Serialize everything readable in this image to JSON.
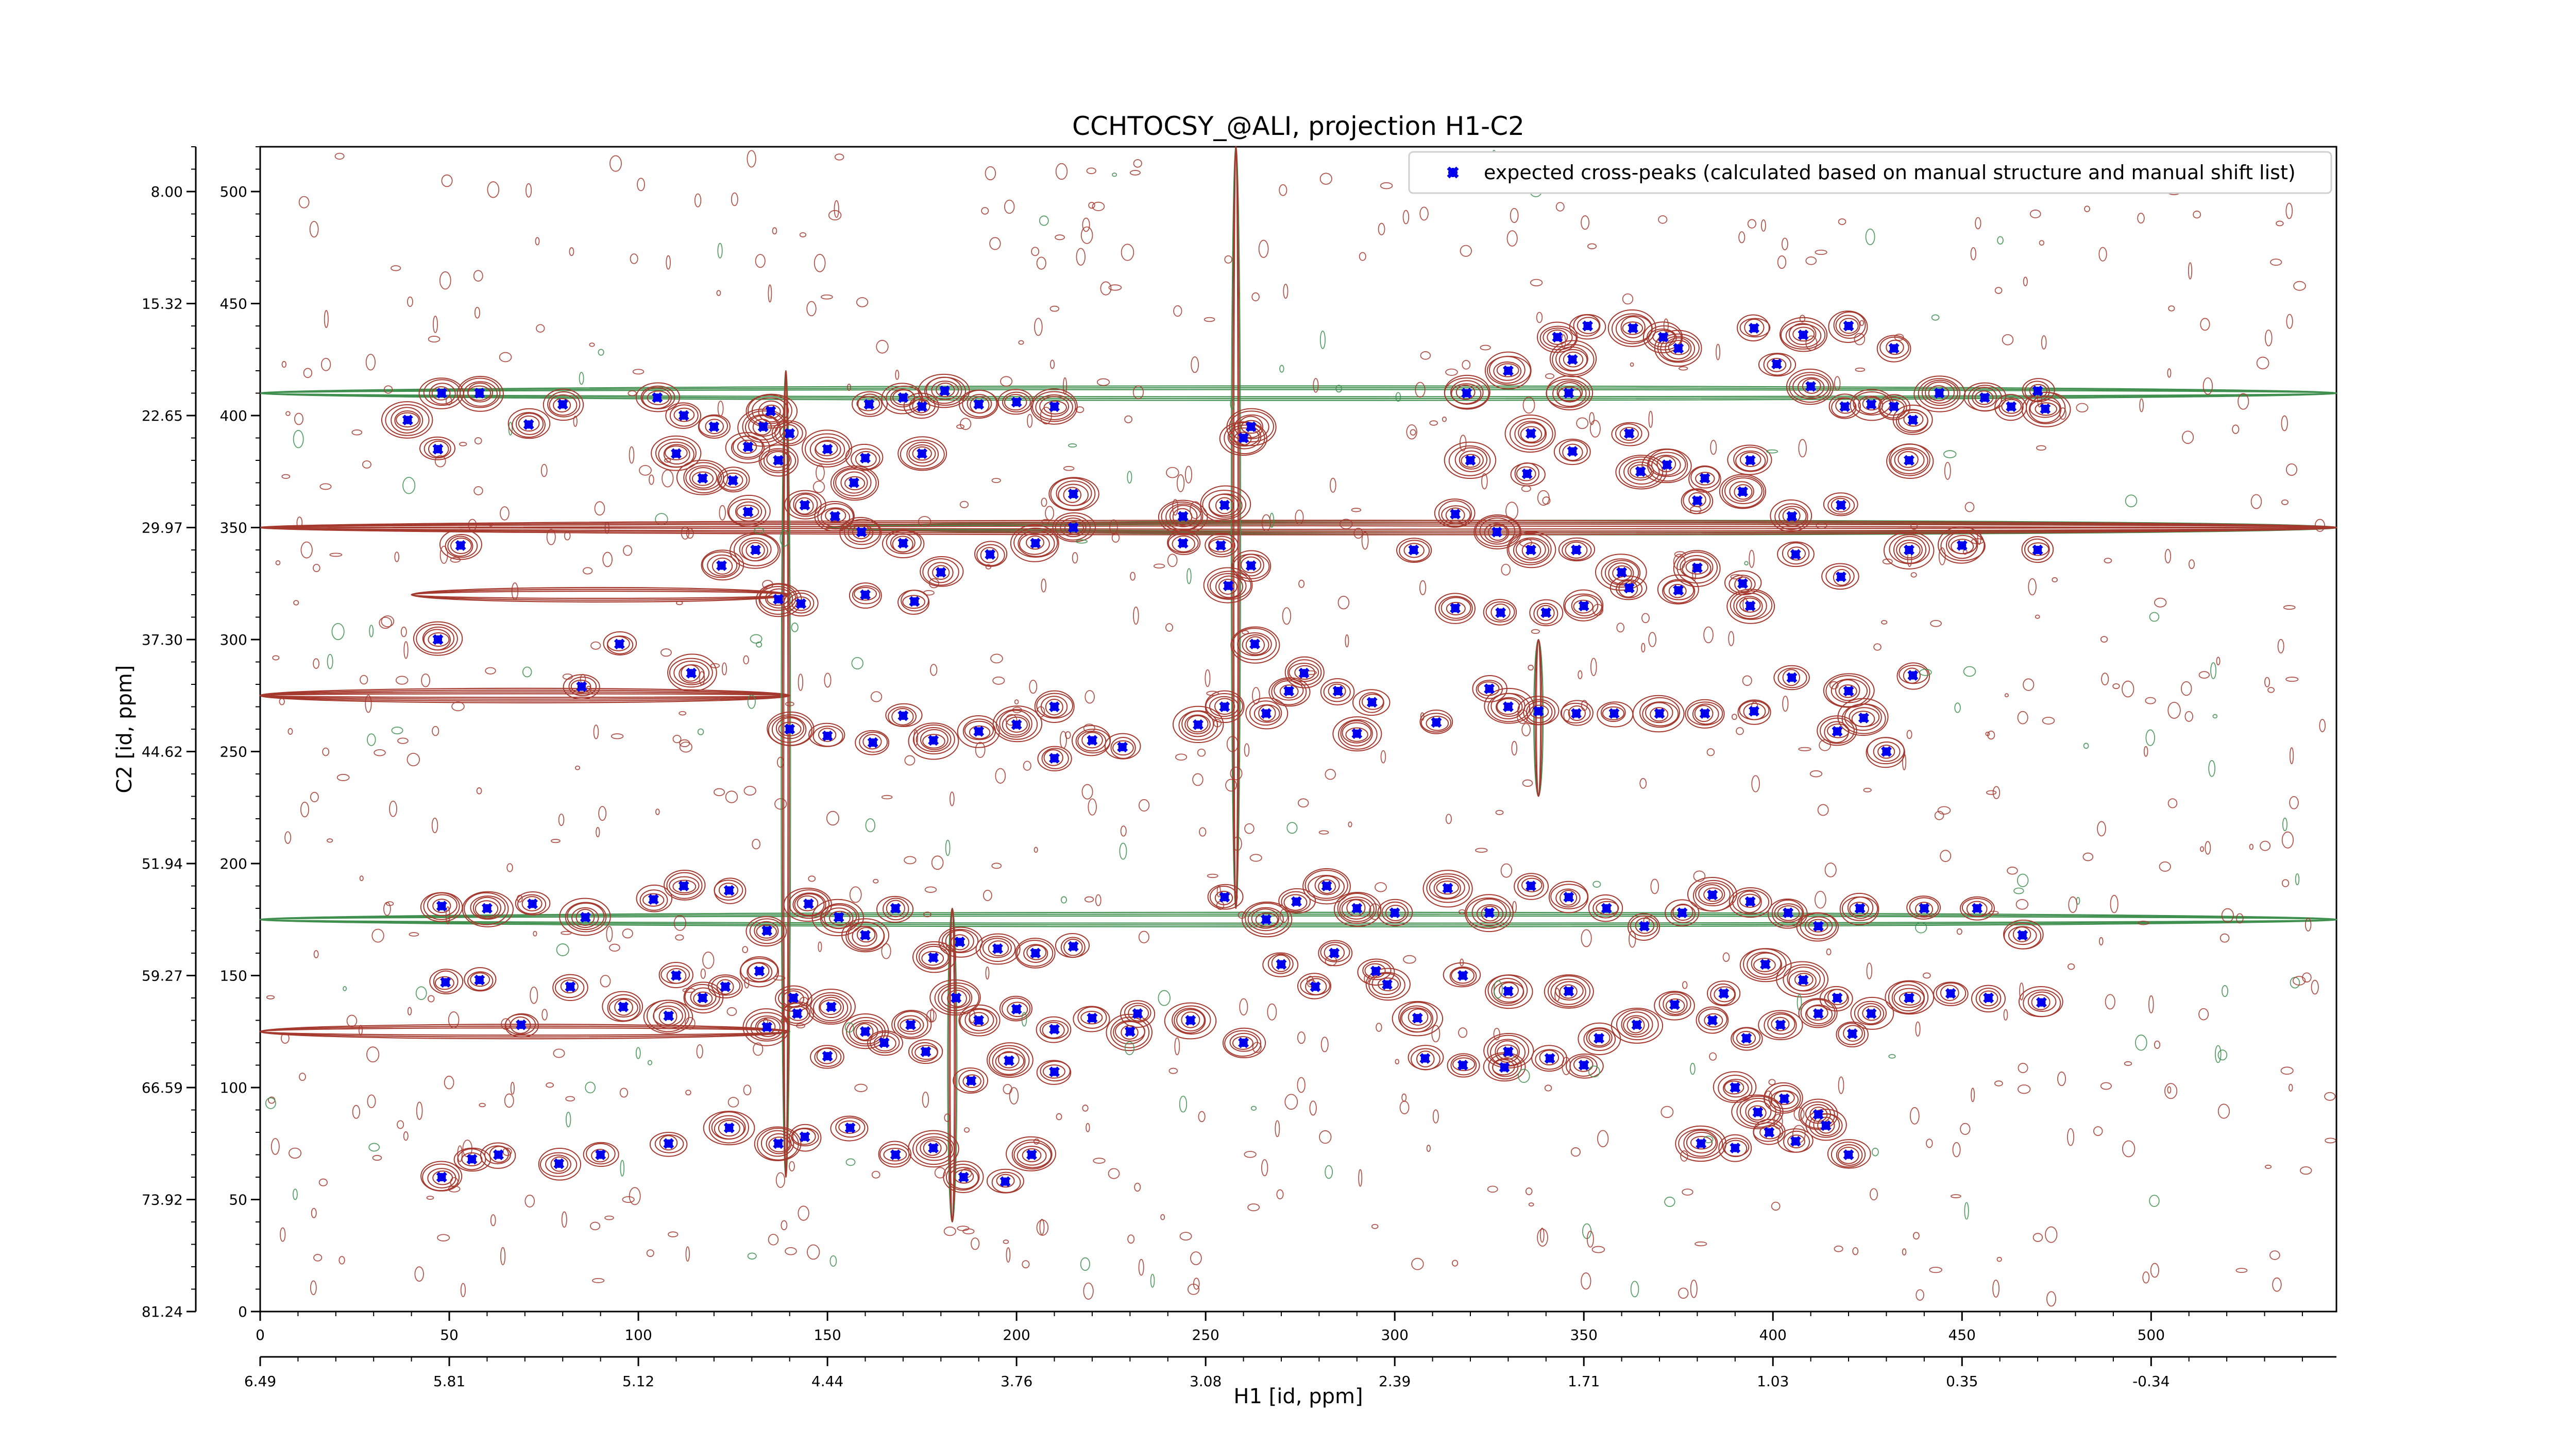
{
  "chart_data": {
    "type": "scatter",
    "title": "CCHTOCSY_@ALI, projection H1-C2",
    "xlabel": "H1 [id, ppm]",
    "ylabel": "C2 [id, ppm]",
    "x_index_range": [
      0,
      549
    ],
    "y_index_range": [
      0,
      520
    ],
    "x_index_ticks": [
      "0",
      "50",
      "100",
      "150",
      "200",
      "250",
      "300",
      "350",
      "400",
      "450",
      "500"
    ],
    "x_ppm_ticks": [
      "6.49",
      "5.81",
      "5.12",
      "4.44",
      "3.76",
      "3.08",
      "2.39",
      "1.71",
      "1.03",
      "0.35",
      "-0.34"
    ],
    "y_index_ticks_left": [
      "0",
      "50",
      "100",
      "150",
      "200",
      "250",
      "300",
      "350",
      "400",
      "450",
      "500"
    ],
    "y_ppm_ticks_left": [
      "81.24",
      "73.92",
      "66.59",
      "59.27",
      "51.94",
      "44.62",
      "37.30",
      "29.97",
      "22.65",
      "15.32",
      "8.00"
    ],
    "legend_placement": "top-right",
    "colors": {
      "positive_contours": "#a5392e",
      "negative_contours": "#3f8f4f",
      "markers": "#0000ee"
    },
    "series": [
      {
        "name": "expected cross-peaks (calculated based on manual structure and manual shift list)",
        "marker": "x",
        "color": "#0000ee",
        "points": [
          [
            48,
            410
          ],
          [
            58,
            410
          ],
          [
            39,
            398
          ],
          [
            47,
            385
          ],
          [
            71,
            396
          ],
          [
            80,
            405
          ],
          [
            105,
            408
          ],
          [
            112,
            400
          ],
          [
            110,
            383
          ],
          [
            120,
            395
          ],
          [
            117,
            372
          ],
          [
            125,
            371
          ],
          [
            129,
            386
          ],
          [
            133,
            395
          ],
          [
            135,
            402
          ],
          [
            140,
            392
          ],
          [
            137,
            380
          ],
          [
            150,
            385
          ],
          [
            160,
            381
          ],
          [
            161,
            405
          ],
          [
            170,
            408
          ],
          [
            175,
            404
          ],
          [
            181,
            411
          ],
          [
            190,
            405
          ],
          [
            200,
            406
          ],
          [
            210,
            404
          ],
          [
            144,
            360
          ],
          [
            152,
            355
          ],
          [
            159,
            348
          ],
          [
            170,
            343
          ],
          [
            180,
            330
          ],
          [
            193,
            338
          ],
          [
            205,
            343
          ],
          [
            215,
            350
          ],
          [
            215,
            365
          ],
          [
            157,
            370
          ],
          [
            175,
            383
          ],
          [
            129,
            357
          ],
          [
            131,
            340
          ],
          [
            122,
            333
          ],
          [
            137,
            318
          ],
          [
            143,
            316
          ],
          [
            160,
            320
          ],
          [
            173,
            317
          ],
          [
            53,
            342
          ],
          [
            47,
            300
          ],
          [
            95,
            298
          ],
          [
            85,
            279
          ],
          [
            114,
            285
          ],
          [
            140,
            260
          ],
          [
            150,
            257
          ],
          [
            162,
            254
          ],
          [
            170,
            266
          ],
          [
            178,
            255
          ],
          [
            190,
            259
          ],
          [
            200,
            262
          ],
          [
            210,
            247
          ],
          [
            220,
            255
          ],
          [
            255,
            270
          ],
          [
            266,
            267
          ],
          [
            272,
            277
          ],
          [
            285,
            277
          ],
          [
            294,
            272
          ],
          [
            311,
            263
          ],
          [
            325,
            278
          ],
          [
            330,
            270
          ],
          [
            338,
            268
          ],
          [
            348,
            267
          ],
          [
            358,
            267
          ],
          [
            370,
            267
          ],
          [
            382,
            267
          ],
          [
            395,
            268
          ],
          [
            405,
            283
          ],
          [
            420,
            277
          ],
          [
            437,
            284
          ],
          [
            430,
            250
          ],
          [
            417,
            259
          ],
          [
            424,
            265
          ],
          [
            394,
            315
          ],
          [
            375,
            322
          ],
          [
            360,
            330
          ],
          [
            348,
            340
          ],
          [
            336,
            340
          ],
          [
            327,
            348
          ],
          [
            316,
            356
          ],
          [
            305,
            340
          ],
          [
            316,
            314
          ],
          [
            328,
            312
          ],
          [
            340,
            312
          ],
          [
            350,
            315
          ],
          [
            362,
            323
          ],
          [
            380,
            332
          ],
          [
            392,
            325
          ],
          [
            406,
            338
          ],
          [
            418,
            328
          ],
          [
            436,
            340
          ],
          [
            450,
            342
          ],
          [
            470,
            340
          ],
          [
            320,
            380
          ],
          [
            335,
            374
          ],
          [
            347,
            384
          ],
          [
            362,
            392
          ],
          [
            372,
            378
          ],
          [
            382,
            372
          ],
          [
            392,
            366
          ],
          [
            405,
            355
          ],
          [
            418,
            360
          ],
          [
            436,
            380
          ],
          [
            343,
            435
          ],
          [
            347,
            425
          ],
          [
            351,
            440
          ],
          [
            363,
            439
          ],
          [
            375,
            430
          ],
          [
            395,
            439
          ],
          [
            408,
            436
          ],
          [
            420,
            440
          ],
          [
            432,
            430
          ],
          [
            444,
            410
          ],
          [
            456,
            408
          ],
          [
            470,
            411
          ],
          [
            463,
            404
          ],
          [
            472,
            403
          ],
          [
            365,
            375
          ],
          [
            380,
            362
          ],
          [
            394,
            380
          ],
          [
            336,
            392
          ],
          [
            319,
            410
          ],
          [
            330,
            420
          ],
          [
            346,
            410
          ],
          [
            371,
            435
          ],
          [
            401,
            423
          ],
          [
            410,
            413
          ],
          [
            419,
            404
          ],
          [
            426,
            405
          ],
          [
            432,
            404
          ],
          [
            437,
            398
          ],
          [
            262,
            395
          ],
          [
            260,
            390
          ],
          [
            255,
            360
          ],
          [
            244,
            355
          ],
          [
            254,
            342
          ],
          [
            262,
            333
          ],
          [
            256,
            324
          ],
          [
            244,
            343
          ],
          [
            263,
            298
          ],
          [
            276,
            285
          ],
          [
            248,
            262
          ],
          [
            228,
            252
          ],
          [
            210,
            270
          ],
          [
            290,
            258
          ],
          [
            48,
            181
          ],
          [
            60,
            180
          ],
          [
            72,
            182
          ],
          [
            86,
            176
          ],
          [
            104,
            184
          ],
          [
            112,
            190
          ],
          [
            124,
            188
          ],
          [
            134,
            170
          ],
          [
            145,
            182
          ],
          [
            153,
            176
          ],
          [
            160,
            168
          ],
          [
            168,
            180
          ],
          [
            178,
            158
          ],
          [
            185,
            165
          ],
          [
            195,
            162
          ],
          [
            205,
            160
          ],
          [
            215,
            163
          ],
          [
            110,
            150
          ],
          [
            123,
            145
          ],
          [
            132,
            152
          ],
          [
            141,
            140
          ],
          [
            151,
            136
          ],
          [
            160,
            125
          ],
          [
            172,
            128
          ],
          [
            184,
            140
          ],
          [
            190,
            130
          ],
          [
            200,
            135
          ],
          [
            210,
            126
          ],
          [
            220,
            131
          ],
          [
            230,
            125
          ],
          [
            49,
            147
          ],
          [
            58,
            148
          ],
          [
            69,
            128
          ],
          [
            82,
            145
          ],
          [
            96,
            136
          ],
          [
            108,
            132
          ],
          [
            117,
            140
          ],
          [
            134,
            127
          ],
          [
            142,
            133
          ],
          [
            150,
            114
          ],
          [
            165,
            120
          ],
          [
            176,
            116
          ],
          [
            188,
            103
          ],
          [
            198,
            112
          ],
          [
            210,
            107
          ],
          [
            48,
            60
          ],
          [
            56,
            68
          ],
          [
            63,
            70
          ],
          [
            79,
            66
          ],
          [
            90,
            70
          ],
          [
            108,
            75
          ],
          [
            124,
            82
          ],
          [
            137,
            75
          ],
          [
            144,
            78
          ],
          [
            156,
            82
          ],
          [
            168,
            70
          ],
          [
            178,
            73
          ],
          [
            186,
            60
          ],
          [
            197,
            58
          ],
          [
            204,
            70
          ],
          [
            255,
            185
          ],
          [
            266,
            175
          ],
          [
            274,
            183
          ],
          [
            282,
            190
          ],
          [
            290,
            180
          ],
          [
            300,
            178
          ],
          [
            314,
            189
          ],
          [
            325,
            178
          ],
          [
            336,
            190
          ],
          [
            346,
            185
          ],
          [
            356,
            180
          ],
          [
            366,
            172
          ],
          [
            376,
            178
          ],
          [
            384,
            186
          ],
          [
            394,
            183
          ],
          [
            404,
            178
          ],
          [
            412,
            172
          ],
          [
            423,
            180
          ],
          [
            440,
            180
          ],
          [
            454,
            180
          ],
          [
            466,
            168
          ],
          [
            270,
            155
          ],
          [
            279,
            145
          ],
          [
            295,
            152
          ],
          [
            306,
            131
          ],
          [
            318,
            150
          ],
          [
            330,
            143
          ],
          [
            346,
            143
          ],
          [
            354,
            122
          ],
          [
            364,
            128
          ],
          [
            374,
            137
          ],
          [
            387,
            142
          ],
          [
            398,
            155
          ],
          [
            408,
            148
          ],
          [
            417,
            140
          ],
          [
            426,
            133
          ],
          [
            436,
            140
          ],
          [
            447,
            142
          ],
          [
            457,
            140
          ],
          [
            471,
            138
          ],
          [
            308,
            113
          ],
          [
            318,
            110
          ],
          [
            330,
            116
          ],
          [
            341,
            113
          ],
          [
            350,
            110
          ],
          [
            384,
            130
          ],
          [
            393,
            122
          ],
          [
            402,
            128
          ],
          [
            412,
            133
          ],
          [
            421,
            124
          ],
          [
            390,
            100
          ],
          [
            396,
            89
          ],
          [
            403,
            95
          ],
          [
            412,
            88
          ],
          [
            381,
            75
          ],
          [
            390,
            73
          ],
          [
            399,
            80
          ],
          [
            406,
            76
          ],
          [
            414,
            83
          ],
          [
            420,
            70
          ],
          [
            232,
            133
          ],
          [
            246,
            130
          ],
          [
            260,
            120
          ],
          [
            284,
            160
          ],
          [
            298,
            146
          ],
          [
            329,
            109
          ]
        ]
      }
    ]
  }
}
